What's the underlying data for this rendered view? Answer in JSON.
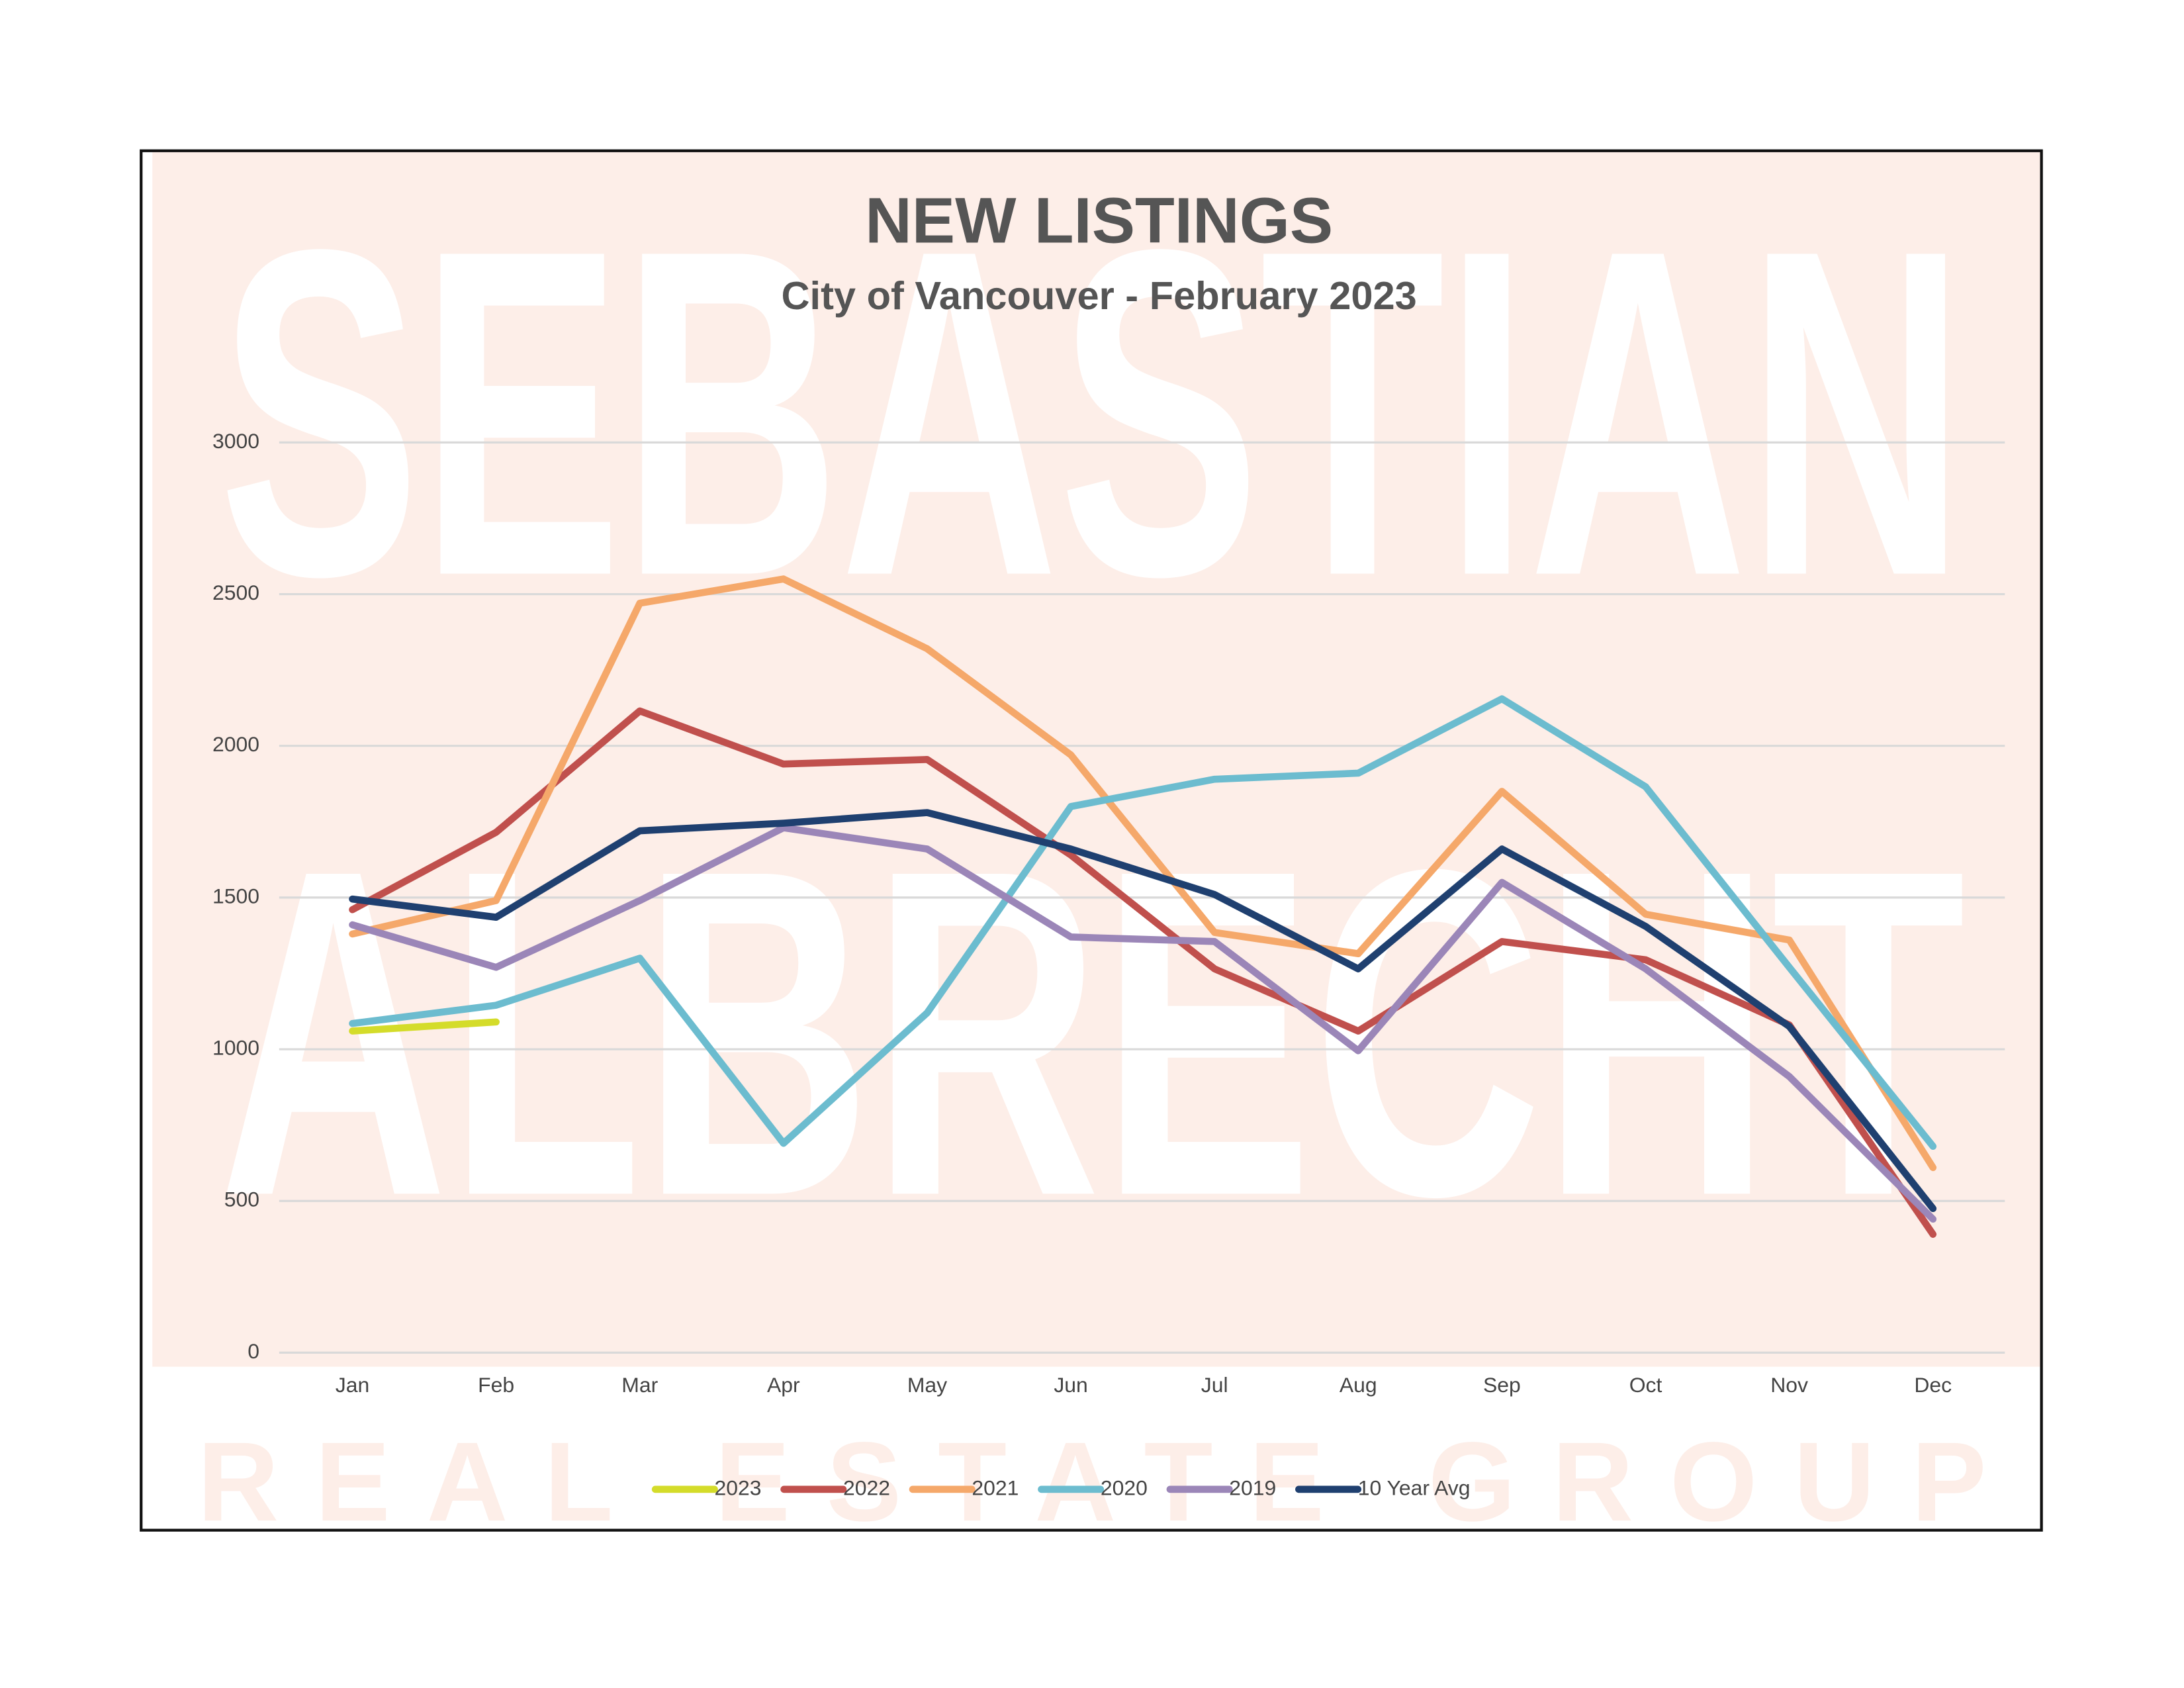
{
  "chart_data": {
    "type": "line",
    "title": "NEW LISTINGS",
    "subtitle": "City of Vancouver - February 2023",
    "watermark": [
      "SEBASTIAN",
      "ALBRECHT",
      "REAL ESTATE GROUP"
    ],
    "categories": [
      "Jan",
      "Feb",
      "Mar",
      "Apr",
      "May",
      "Jun",
      "Jul",
      "Aug",
      "Sep",
      "Oct",
      "Nov",
      "Dec"
    ],
    "series": [
      {
        "name": "2023",
        "color": "#d4dc2a",
        "values": [
          1060,
          1090,
          null,
          null,
          null,
          null,
          null,
          null,
          null,
          null,
          null,
          null
        ]
      },
      {
        "name": "2022",
        "color": "#c0504d",
        "values": [
          1460,
          1715,
          2115,
          1940,
          1955,
          1640,
          1265,
          1060,
          1355,
          1295,
          1080,
          390
        ]
      },
      {
        "name": "2021",
        "color": "#f5a86a",
        "values": [
          1380,
          1490,
          2470,
          2550,
          2320,
          1970,
          1385,
          1315,
          1850,
          1445,
          1360,
          610
        ]
      },
      {
        "name": "2020",
        "color": "#6cbccf",
        "values": [
          1085,
          1145,
          1300,
          690,
          1120,
          1800,
          1890,
          1910,
          2155,
          1865,
          1270,
          680
        ]
      },
      {
        "name": "2019",
        "color": "#9b86b8",
        "values": [
          1410,
          1270,
          1490,
          1730,
          1660,
          1370,
          1355,
          995,
          1550,
          1265,
          910,
          440
        ]
      },
      {
        "name": "10 Year Avg",
        "color": "#1f4070",
        "values": [
          1495,
          1435,
          1720,
          1745,
          1780,
          1660,
          1510,
          1265,
          1660,
          1405,
          1075,
          475
        ]
      }
    ],
    "ylim": [
      0,
      3000
    ],
    "yticks": [
      0,
      500,
      1000,
      1500,
      2000,
      2500,
      3000
    ],
    "grid": true,
    "legend": "bottom"
  }
}
